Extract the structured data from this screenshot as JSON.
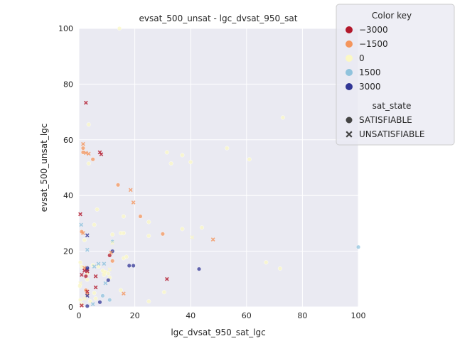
{
  "chart_data": {
    "type": "scatter",
    "title": "evsat_500_unsat - lgc_dvsat_950_sat",
    "xlabel": "lgc_dvsat_950_sat_lgc",
    "ylabel": "evsat_500_unsat_lgc",
    "xlim": [
      0,
      100
    ],
    "ylim": [
      0,
      100
    ],
    "xticks": [
      0,
      20,
      40,
      60,
      80,
      100
    ],
    "yticks": [
      0,
      20,
      40,
      60,
      80,
      100
    ],
    "grid": true,
    "legend": {
      "placement": "top-right",
      "color_title": "Color key",
      "color_entries": [
        {
          "label": "−3000",
          "color": "#b2182b"
        },
        {
          "label": "−1500",
          "color": "#f4955c"
        },
        {
          "label": "0",
          "color": "#fbf8c4"
        },
        {
          "label": "1500",
          "color": "#90c3dd"
        },
        {
          "label": "3000",
          "color": "#313695"
        }
      ],
      "marker_title": "sat_state",
      "marker_entries": [
        {
          "label": "SATISFIABLE",
          "marker": "circle"
        },
        {
          "label": "UNSATISFIABLE",
          "marker": "x"
        }
      ]
    },
    "series": [
      {
        "marker": "circle",
        "points": [
          [
            14.5,
            100,
            0
          ],
          [
            73,
            68,
            0
          ],
          [
            31.5,
            55.5,
            0
          ],
          [
            37,
            54.5,
            0
          ],
          [
            53,
            57,
            0
          ],
          [
            61,
            53,
            0
          ],
          [
            33,
            51.5,
            0
          ],
          [
            40,
            52,
            0
          ],
          [
            3.5,
            51.5,
            0
          ],
          [
            5,
            53,
            -1500
          ],
          [
            1.5,
            57,
            -1500
          ],
          [
            1.5,
            55.5,
            -1500
          ],
          [
            3.5,
            65.5,
            0
          ],
          [
            6.5,
            35,
            0
          ],
          [
            14,
            43.8,
            -1500
          ],
          [
            16,
            32.5,
            0
          ],
          [
            22,
            32.5,
            -1500
          ],
          [
            25,
            30.5,
            0
          ],
          [
            37,
            28,
            0
          ],
          [
            44,
            28.5,
            0
          ],
          [
            5.5,
            29.5,
            0
          ],
          [
            1,
            27,
            -1500
          ],
          [
            15,
            26.5,
            0
          ],
          [
            16,
            26.5,
            0
          ],
          [
            12,
            26,
            0
          ],
          [
            30,
            26.2,
            -1500
          ],
          [
            25,
            25.5,
            0
          ],
          [
            12,
            23.5,
            1500
          ],
          [
            2,
            24,
            0
          ],
          [
            11,
            18.5,
            -3000
          ],
          [
            12,
            20,
            3000
          ],
          [
            16,
            17.5,
            0
          ],
          [
            17,
            18,
            0
          ],
          [
            18,
            14.8,
            3000
          ],
          [
            19.5,
            14.8,
            3000
          ],
          [
            43,
            13.6,
            3000
          ],
          [
            67,
            16,
            0
          ],
          [
            72,
            13.8,
            0
          ],
          [
            3,
            14,
            3000
          ],
          [
            1,
            14.5,
            0
          ],
          [
            0.5,
            16,
            0
          ],
          [
            7,
            14.5,
            0
          ],
          [
            8.5,
            13,
            0
          ],
          [
            9.5,
            12.5,
            0
          ],
          [
            10.5,
            12,
            0
          ],
          [
            9,
            11.5,
            0
          ],
          [
            11,
            10.5,
            0
          ],
          [
            12,
            16.5,
            -1500
          ],
          [
            5,
            15,
            0
          ],
          [
            3,
            12,
            0
          ],
          [
            2.5,
            11,
            -3000
          ],
          [
            3,
            9.8,
            0
          ],
          [
            10.5,
            9.6,
            3000
          ],
          [
            2.5,
            6,
            -1500
          ],
          [
            3,
            4.5,
            -1500
          ],
          [
            8.5,
            4,
            1500
          ],
          [
            30.5,
            5.3,
            0
          ],
          [
            11,
            2.5,
            1500
          ],
          [
            7.5,
            1.7,
            3000
          ],
          [
            3,
            0.3,
            3000
          ],
          [
            0.5,
            2.5,
            0
          ],
          [
            0.3,
            7.5,
            0
          ],
          [
            5.5,
            5,
            0
          ],
          [
            15,
            6,
            0
          ],
          [
            100,
            21.5,
            1500
          ],
          [
            1,
            1,
            0
          ],
          [
            4,
            2,
            0
          ],
          [
            25,
            2,
            0
          ],
          [
            6,
            3,
            0
          ]
        ]
      },
      {
        "marker": "x",
        "points": [
          [
            2.5,
            73.3,
            -3000
          ],
          [
            1.5,
            58.5,
            -1500
          ],
          [
            7.5,
            55.5,
            -3000
          ],
          [
            8,
            54.8,
            -3000
          ],
          [
            2.5,
            55.3,
            -1500
          ],
          [
            3.5,
            55,
            -1500
          ],
          [
            18.5,
            42,
            -1500
          ],
          [
            19.5,
            37.5,
            -1500
          ],
          [
            0.5,
            33.3,
            -3000
          ],
          [
            3,
            25.7,
            3000
          ],
          [
            1.5,
            26.5,
            -1500
          ],
          [
            0.8,
            29.5,
            1500
          ],
          [
            12,
            23,
            0
          ],
          [
            40.5,
            25,
            0
          ],
          [
            48,
            24.2,
            -1500
          ],
          [
            3,
            20.5,
            1500
          ],
          [
            11.5,
            19.5,
            -1500
          ],
          [
            3,
            13.5,
            3000
          ],
          [
            2,
            14,
            -1500
          ],
          [
            3,
            12.8,
            -3000
          ],
          [
            6,
            11,
            -3000
          ],
          [
            1,
            11.5,
            -3000
          ],
          [
            2,
            13,
            -3000
          ],
          [
            7,
            15.5,
            1500
          ],
          [
            9,
            15.5,
            1500
          ],
          [
            5.5,
            14.5,
            1500
          ],
          [
            9,
            12.5,
            0
          ],
          [
            11,
            13.5,
            0
          ],
          [
            31.5,
            10,
            -3000
          ],
          [
            6,
            7,
            -3000
          ],
          [
            3,
            5.5,
            -3000
          ],
          [
            3,
            4,
            3000
          ],
          [
            2,
            3,
            0
          ],
          [
            9.5,
            8.5,
            1500
          ],
          [
            16,
            4.8,
            -1500
          ],
          [
            1,
            0.5,
            -3000
          ],
          [
            5,
            1,
            1500
          ],
          [
            0.5,
            8.5,
            0
          ]
        ]
      }
    ]
  }
}
